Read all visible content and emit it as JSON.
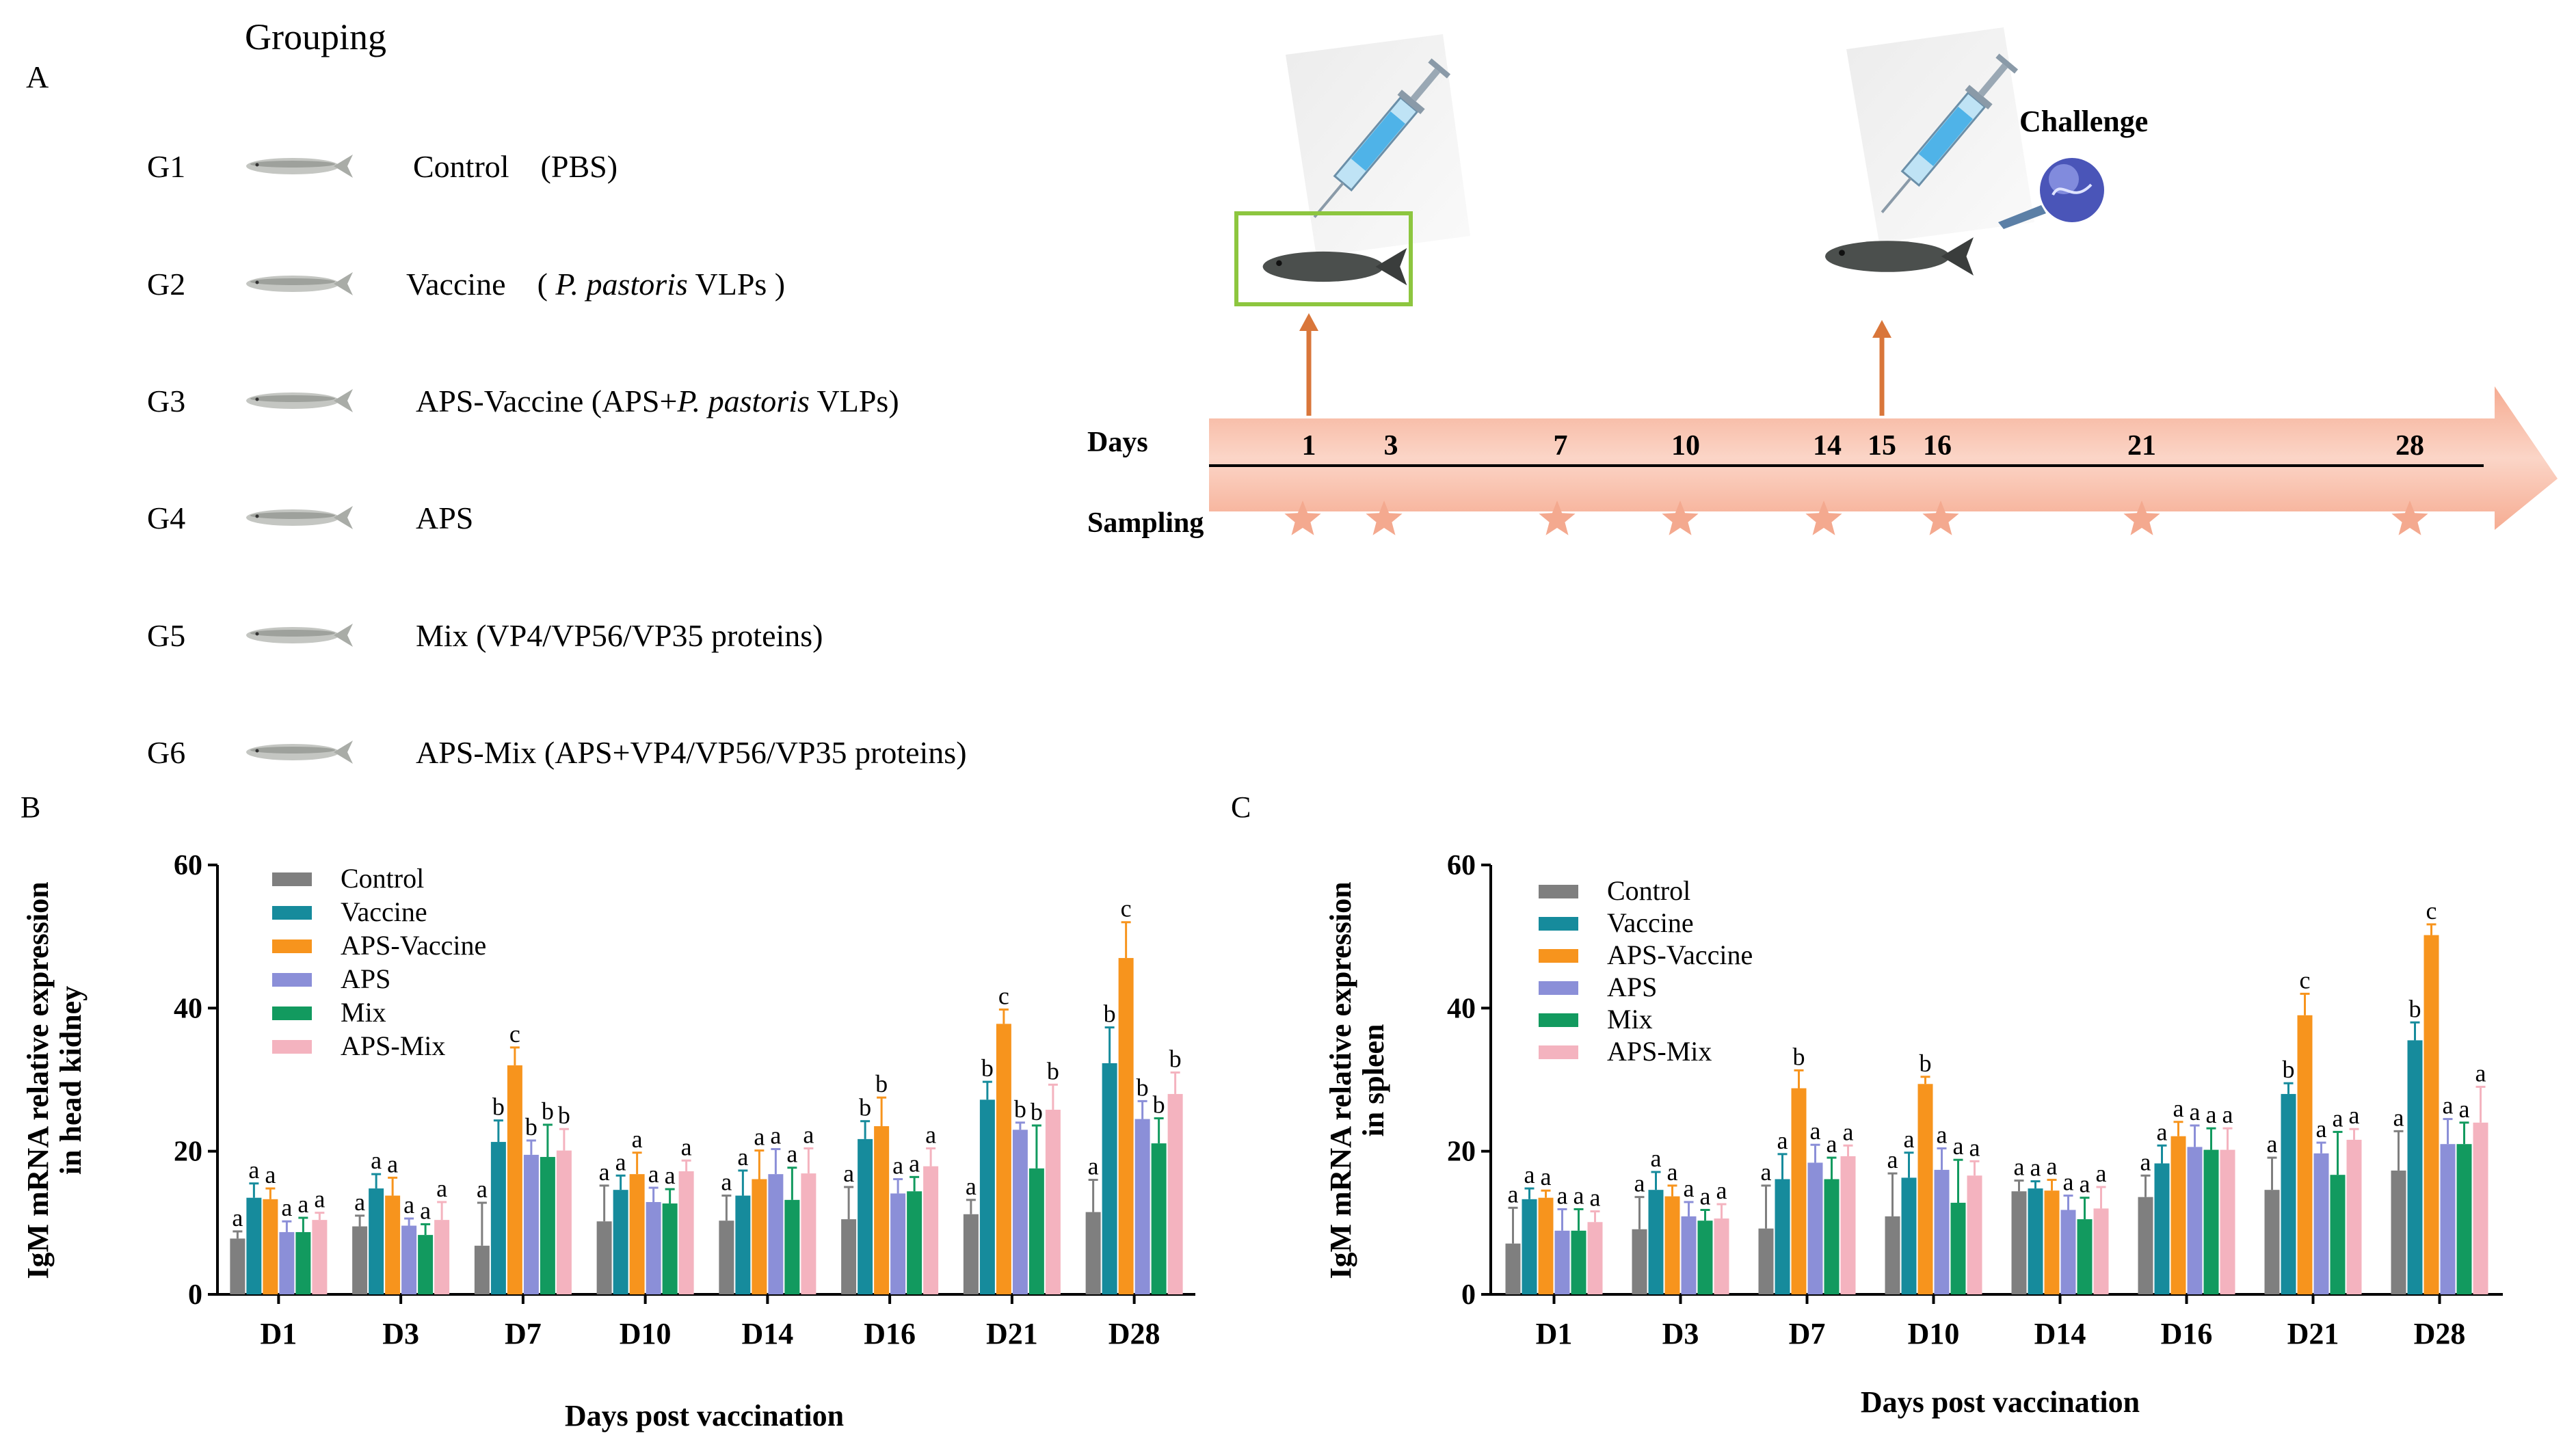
{
  "panel_a": {
    "letter": "A",
    "grouping_title": "Grouping",
    "groups": [
      {
        "id": "G1",
        "parts": [
          {
            "t": "Control　(PBS)",
            "i": false
          }
        ]
      },
      {
        "id": "G2",
        "parts": [
          {
            "t": "Vaccine　( ",
            "i": false
          },
          {
            "t": "P. pastoris",
            "i": true
          },
          {
            "t": " VLPs )",
            "i": false
          }
        ]
      },
      {
        "id": "G3",
        "parts": [
          {
            "t": "APS-Vaccine  (APS+",
            "i": false
          },
          {
            "t": "P. pastoris",
            "i": true
          },
          {
            "t": " VLPs)",
            "i": false
          }
        ]
      },
      {
        "id": "G4",
        "parts": [
          {
            "t": "APS",
            "i": false
          }
        ]
      },
      {
        "id": "G5",
        "parts": [
          {
            "t": "Mix (VP4/VP56/VP35 proteins)",
            "i": false
          }
        ]
      },
      {
        "id": "G6",
        "parts": [
          {
            "t": "APS-Mix (APS+VP4/VP56/VP35 proteins)",
            "i": false
          }
        ]
      }
    ],
    "timeline": {
      "days_label": "Days",
      "sampling_label": "Sampling",
      "challenge_label": "Challenge",
      "days": [
        "1",
        "3",
        "7",
        "10",
        "14",
        "15",
        "16",
        "21",
        "28"
      ],
      "sampling_days": [
        "1",
        "3",
        "7",
        "10",
        "14",
        "16",
        "21",
        "28"
      ],
      "injection_days": [
        "1",
        "15"
      ]
    }
  },
  "colors": {
    "Control": "#7f7f7f",
    "Vaccine": "#168b9c",
    "APS-Vaccine": "#f7941d",
    "APS": "#8b8fd8",
    "Mix": "#129a5f",
    "APS-Mix": "#f4b3bf",
    "arrow_body": "#f8c8b6",
    "arrow_edge": "#f6a287",
    "star": "#f4a98f",
    "orange_arrow": "#d9763a",
    "box_green": "#8dc63f"
  },
  "chart_data": [
    {
      "type": "bar",
      "panel": "B",
      "ylabel": [
        "IgM mRNA relative expression",
        "in head kidney"
      ],
      "xlabel": "Days post vaccination",
      "ylim": [
        0,
        60
      ],
      "yticks": [
        "0",
        "20",
        "40",
        "60"
      ],
      "categories": [
        "D1",
        "D3",
        "D7",
        "D10",
        "D14",
        "D16",
        "D21",
        "D28"
      ],
      "series": [
        {
          "name": "Control",
          "values": [
            7.8,
            9.5,
            6.8,
            10.2,
            10.3,
            10.5,
            11.2,
            11.5
          ],
          "errors": [
            1.0,
            1.5,
            6.0,
            5.0,
            3.5,
            4.5,
            2.0,
            4.5
          ],
          "letters": [
            "a",
            "a",
            "a",
            "a",
            "a",
            "a",
            "a",
            "a"
          ]
        },
        {
          "name": "Vaccine",
          "values": [
            13.5,
            14.8,
            21.3,
            14.6,
            13.8,
            21.7,
            27.2,
            32.3
          ],
          "errors": [
            2.0,
            2.0,
            3.0,
            2.0,
            3.5,
            2.5,
            2.5,
            5.0
          ],
          "letters": [
            "a",
            "a",
            "b",
            "a",
            "a",
            "b",
            "b",
            "b"
          ]
        },
        {
          "name": "APS-Vaccine",
          "values": [
            13.3,
            13.8,
            32.0,
            16.8,
            16.1,
            23.5,
            37.8,
            47.0
          ],
          "errors": [
            1.5,
            2.5,
            2.5,
            3.0,
            4.0,
            4.0,
            2.0,
            5.0
          ],
          "letters": [
            "a",
            "a",
            "c",
            "a",
            "a",
            "b",
            "c",
            "c"
          ]
        },
        {
          "name": "APS",
          "values": [
            8.7,
            9.6,
            19.5,
            12.9,
            16.8,
            14.1,
            23.0,
            24.5
          ],
          "errors": [
            1.5,
            1.0,
            2.0,
            2.0,
            3.5,
            2.0,
            1.0,
            2.5
          ],
          "letters": [
            "a",
            "a",
            "b",
            "a",
            "a",
            "a",
            "b",
            "b"
          ]
        },
        {
          "name": "Mix",
          "values": [
            8.7,
            8.3,
            19.2,
            12.7,
            13.2,
            14.4,
            17.6,
            21.1
          ],
          "errors": [
            2.0,
            1.5,
            4.5,
            2.0,
            4.5,
            2.0,
            6.0,
            3.5
          ],
          "letters": [
            "a",
            "a",
            "b",
            "a",
            "a",
            "a",
            "b",
            "b"
          ]
        },
        {
          "name": "APS-Mix",
          "values": [
            10.4,
            10.4,
            20.1,
            17.2,
            16.9,
            17.9,
            25.8,
            28.0
          ],
          "errors": [
            1.0,
            2.5,
            3.0,
            1.5,
            3.5,
            2.5,
            3.5,
            3.0
          ],
          "letters": [
            "a",
            "a",
            "b",
            "a",
            "a",
            "a",
            "b",
            "b"
          ]
        }
      ]
    },
    {
      "type": "bar",
      "panel": "C",
      "ylabel": [
        "IgM mRNA relative expression",
        "in spleen"
      ],
      "xlabel": "Days post vaccination",
      "ylim": [
        0,
        60
      ],
      "yticks": [
        "0",
        "20",
        "40",
        "60"
      ],
      "categories": [
        "D1",
        "D3",
        "D7",
        "D10",
        "D14",
        "D16",
        "D21",
        "D28"
      ],
      "series": [
        {
          "name": "Control",
          "values": [
            7.1,
            9.1,
            9.2,
            10.9,
            14.4,
            13.6,
            14.6,
            17.3
          ],
          "errors": [
            5.0,
            4.5,
            6.0,
            6.0,
            1.5,
            3.0,
            4.5,
            5.5
          ],
          "letters": [
            "a",
            "a",
            "a",
            "a",
            "a",
            "a",
            "a",
            "a"
          ]
        },
        {
          "name": "Vaccine",
          "values": [
            13.3,
            14.6,
            16.1,
            16.3,
            14.8,
            18.3,
            28.0,
            35.5
          ],
          "errors": [
            1.5,
            2.5,
            3.5,
            3.5,
            1.0,
            2.5,
            1.5,
            2.5
          ],
          "letters": [
            "a",
            "a",
            "a",
            "a",
            "a",
            "a",
            "b",
            "b"
          ]
        },
        {
          "name": "APS-Vaccine",
          "values": [
            13.5,
            13.7,
            28.8,
            29.4,
            14.5,
            22.1,
            39.0,
            50.2
          ],
          "errors": [
            1.0,
            1.5,
            2.5,
            1.0,
            1.5,
            2.0,
            3.0,
            1.5
          ],
          "letters": [
            "a",
            "a",
            "b",
            "b",
            "a",
            "a",
            "c",
            "c"
          ]
        },
        {
          "name": "APS",
          "values": [
            8.9,
            10.9,
            18.4,
            17.4,
            11.8,
            20.6,
            19.7,
            21.0
          ],
          "errors": [
            3.0,
            2.0,
            2.5,
            3.0,
            2.0,
            3.0,
            1.5,
            3.5
          ],
          "letters": [
            "a",
            "a",
            "a",
            "a",
            "a",
            "a",
            "a",
            "a"
          ]
        },
        {
          "name": "Mix",
          "values": [
            8.9,
            10.3,
            16.1,
            12.8,
            10.5,
            20.2,
            16.7,
            21.0
          ],
          "errors": [
            3.0,
            1.5,
            3.0,
            6.0,
            3.0,
            3.0,
            6.0,
            3.0
          ],
          "letters": [
            "a",
            "a",
            "a",
            "a",
            "a",
            "a",
            "a",
            "a"
          ]
        },
        {
          "name": "APS-Mix",
          "values": [
            10.1,
            10.6,
            19.3,
            16.6,
            12.0,
            20.2,
            21.6,
            24.0
          ],
          "errors": [
            1.5,
            2.0,
            1.5,
            2.0,
            3.0,
            3.0,
            1.5,
            5.0
          ],
          "letters": [
            "a",
            "a",
            "a",
            "a",
            "a",
            "a",
            "a",
            "a"
          ]
        }
      ]
    }
  ]
}
